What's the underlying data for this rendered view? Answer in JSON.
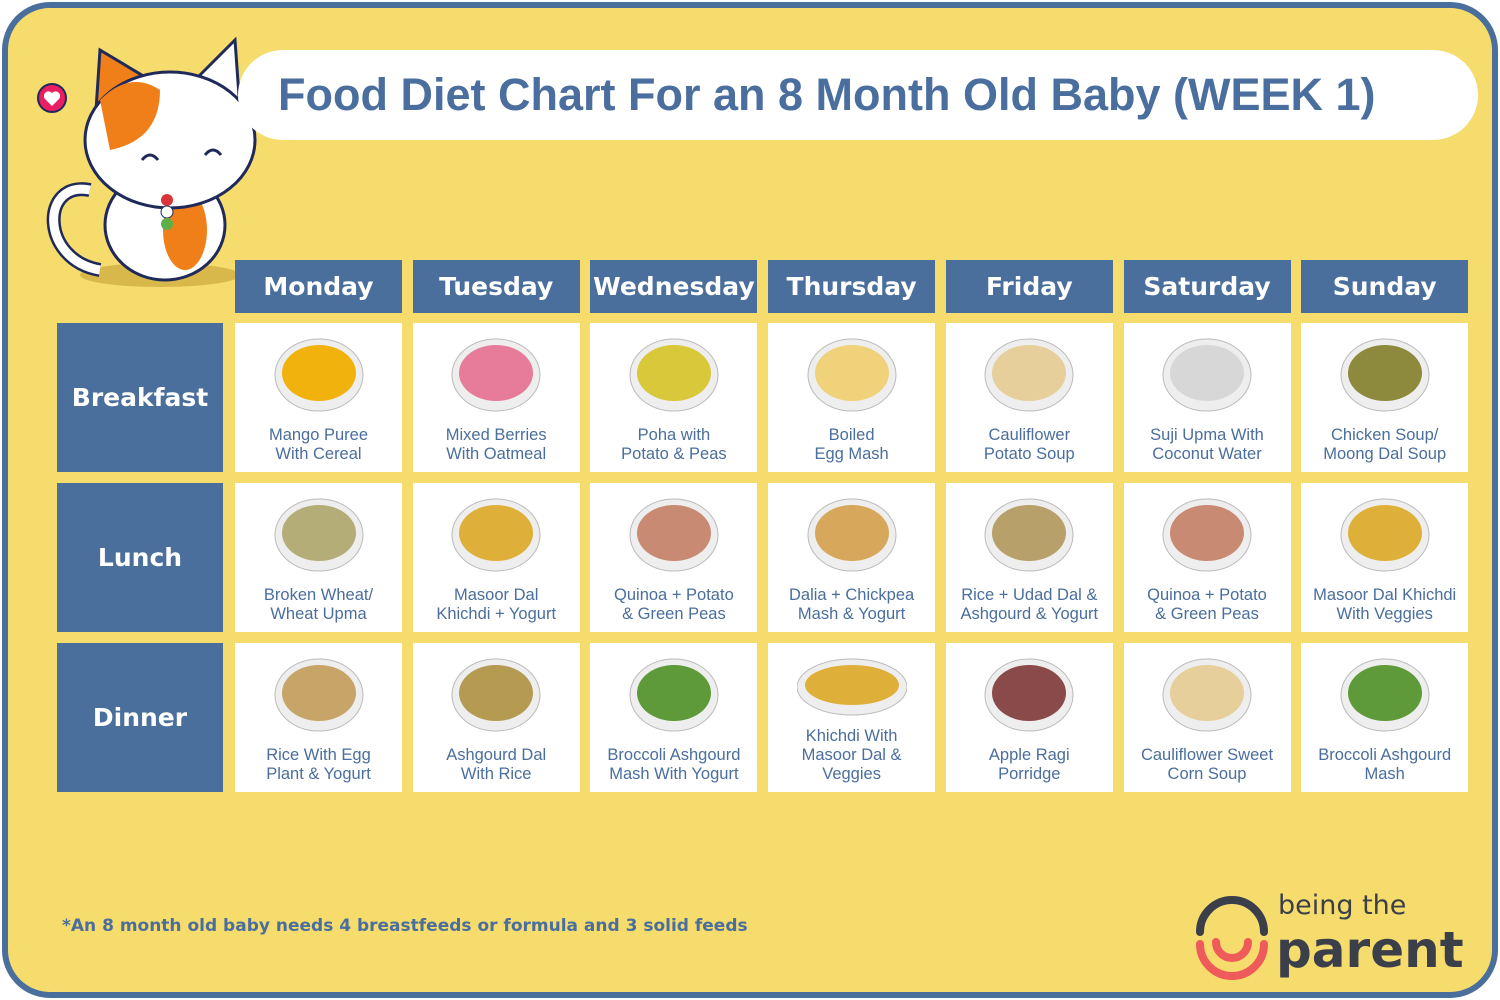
{
  "title": "Food Diet Chart For an 8 Month Old Baby (WEEK 1)",
  "colors": {
    "background": "#f6dc6c",
    "accent": "#4a6f9c",
    "text": "#4a6e9d",
    "logo_red": "#ef5a5a",
    "logo_dark": "#3a3f4a"
  },
  "days": [
    "Monday",
    "Tuesday",
    "Wednesday",
    "Thursday",
    "Friday",
    "Saturday",
    "Sunday"
  ],
  "meals": [
    {
      "label": "Breakfast",
      "items": [
        {
          "name": [
            "Mango Puree",
            "With Cereal"
          ],
          "food_color": "#f2b20e"
        },
        {
          "name": [
            "Mixed Berries",
            "With Oatmeal"
          ],
          "food_color": "#e77b9a"
        },
        {
          "name": [
            "Poha with",
            "Potato & Peas"
          ],
          "food_color": "#d8c83a"
        },
        {
          "name": [
            "Boiled",
            "Egg Mash"
          ],
          "food_color": "#f0d27a"
        },
        {
          "name": [
            "Cauliflower",
            "Potato Soup"
          ],
          "food_color": "#e6cf9a"
        },
        {
          "name": [
            "Suji Upma With",
            "Coconut Water"
          ],
          "food_color": "#d7d7d7"
        },
        {
          "name": [
            "Chicken Soup/",
            "Moong Dal Soup"
          ],
          "food_color": "#8d8a3e"
        }
      ]
    },
    {
      "label": "Lunch",
      "items": [
        {
          "name": [
            "Broken Wheat/",
            "Wheat Upma"
          ],
          "food_color": "#b5ad77"
        },
        {
          "name": [
            "Masoor Dal",
            "Khichdi + Yogurt"
          ],
          "food_color": "#deb03a"
        },
        {
          "name": [
            "Quinoa + Potato",
            "& Green Peas"
          ],
          "food_color": "#c98a74"
        },
        {
          "name": [
            "Dalia + Chickpea",
            "Mash & Yogurt"
          ],
          "food_color": "#d7a85b"
        },
        {
          "name": [
            "Rice + Udad Dal &",
            "Ashgourd & Yogurt"
          ],
          "food_color": "#b8a06a"
        },
        {
          "name": [
            "Quinoa + Potato",
            "& Green Peas"
          ],
          "food_color": "#c98a74"
        },
        {
          "name": [
            "Masoor Dal Khichdi",
            "With Veggies"
          ],
          "food_color": "#deb03a"
        }
      ]
    },
    {
      "label": "Dinner",
      "items": [
        {
          "name": [
            "Rice With Egg",
            "Plant & Yogurt"
          ],
          "food_color": "#c7a467"
        },
        {
          "name": [
            "Ashgourd Dal",
            "With Rice"
          ],
          "food_color": "#b59a52"
        },
        {
          "name": [
            "Broccoli Ashgourd",
            "Mash With Yogurt"
          ],
          "food_color": "#5f9a3a"
        },
        {
          "name": [
            "Khichdi With",
            "Masoor Dal &",
            "Veggies"
          ],
          "food_color": "#deb03a"
        },
        {
          "name": [
            "Apple Ragi",
            "Porridge"
          ],
          "food_color": "#8a4a4a"
        },
        {
          "name": [
            "Cauliflower Sweet",
            "Corn Soup"
          ],
          "food_color": "#e6cf9a"
        },
        {
          "name": [
            "Broccoli Ashgourd",
            "Mash"
          ],
          "food_color": "#5f9a3a"
        }
      ]
    }
  ],
  "note": "*An 8 month old baby needs 4 breastfeeds or formula and 3 solid feeds",
  "logo": {
    "line1": "being the",
    "line2": "parent"
  }
}
